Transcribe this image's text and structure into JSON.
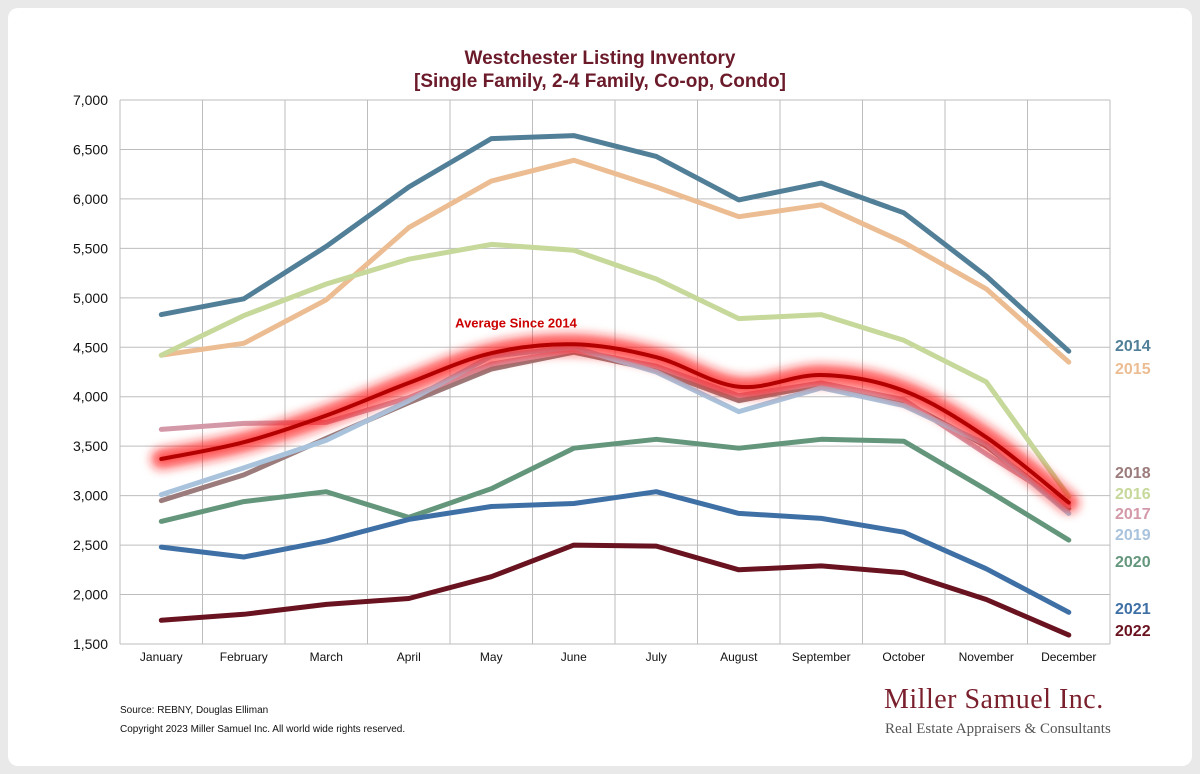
{
  "chart_data": {
    "type": "line",
    "title": "Westchester Listing Inventory",
    "subtitle": "[Single Family, 2-4 Family, Co-op, Condo]",
    "categories": [
      "January",
      "February",
      "March",
      "April",
      "May",
      "June",
      "July",
      "August",
      "September",
      "October",
      "November",
      "December"
    ],
    "y_ticks": [
      "1,500",
      "2,000",
      "2,500",
      "3,000",
      "3,500",
      "4,000",
      "4,500",
      "5,000",
      "5,500",
      "6,000",
      "6,500",
      "7,000"
    ],
    "ylim": [
      1500,
      7000
    ],
    "grid": true,
    "series": [
      {
        "name": "2014",
        "color": "#527f98",
        "values": [
          4830,
          4990,
          5520,
          6120,
          6610,
          6640,
          6430,
          5990,
          6160,
          5860,
          5220,
          4460
        ]
      },
      {
        "name": "2015",
        "color": "#ecbd92",
        "values": [
          4420,
          4540,
          4980,
          5710,
          6180,
          6390,
          6120,
          5820,
          5940,
          5560,
          5090,
          4350
        ]
      },
      {
        "name": "2016",
        "color": "#c6d89a",
        "values": [
          4420,
          4820,
          5140,
          5390,
          5540,
          5480,
          5190,
          4790,
          4830,
          4570,
          4150,
          2990
        ]
      },
      {
        "name": "2018",
        "color": "#9b7b7b",
        "values": [
          2950,
          3210,
          3580,
          3940,
          4280,
          4450,
          4270,
          3960,
          4120,
          3950,
          3500,
          2870
        ]
      },
      {
        "name": "2017",
        "color": "#d499a8",
        "values": [
          3670,
          3730,
          3740,
          3990,
          4330,
          4470,
          4310,
          4010,
          4140,
          3970,
          3420,
          2900
        ]
      },
      {
        "name": "2019",
        "color": "#a9c3dc",
        "values": [
          3010,
          3280,
          3560,
          3960,
          4410,
          4500,
          4250,
          3850,
          4090,
          3910,
          3520,
          2820
        ]
      },
      {
        "name": "2020",
        "color": "#64967c",
        "values": [
          2740,
          2940,
          3040,
          2780,
          3070,
          3480,
          3570,
          3480,
          3570,
          3550,
          3060,
          2550
        ]
      },
      {
        "name": "2021",
        "color": "#3e70a6",
        "values": [
          2480,
          2380,
          2540,
          2760,
          2890,
          2920,
          3040,
          2820,
          2770,
          2630,
          2260,
          1820
        ]
      },
      {
        "name": "2022",
        "color": "#6a1320",
        "values": [
          1740,
          1800,
          1900,
          1960,
          2180,
          2500,
          2490,
          2250,
          2290,
          2220,
          1950,
          1590
        ]
      }
    ],
    "average": {
      "name": "Average Since 2014",
      "color": "#cc0000",
      "values": [
        3370,
        3540,
        3810,
        4140,
        4440,
        4530,
        4400,
        4100,
        4220,
        4060,
        3590,
        2930
      ]
    },
    "label_order": [
      "2014",
      "2015",
      "2018",
      "2016",
      "2017",
      "2019",
      "2020",
      "2021",
      "2022"
    ]
  },
  "footer": {
    "source": "Source: REBNY, Douglas Elliman",
    "copyright": "Copyright 2023 Miller Samuel Inc.  All world wide rights reserved."
  },
  "brand": {
    "name": "Miller Samuel Inc.",
    "tagline": "Real Estate Appraisers & Consultants"
  }
}
